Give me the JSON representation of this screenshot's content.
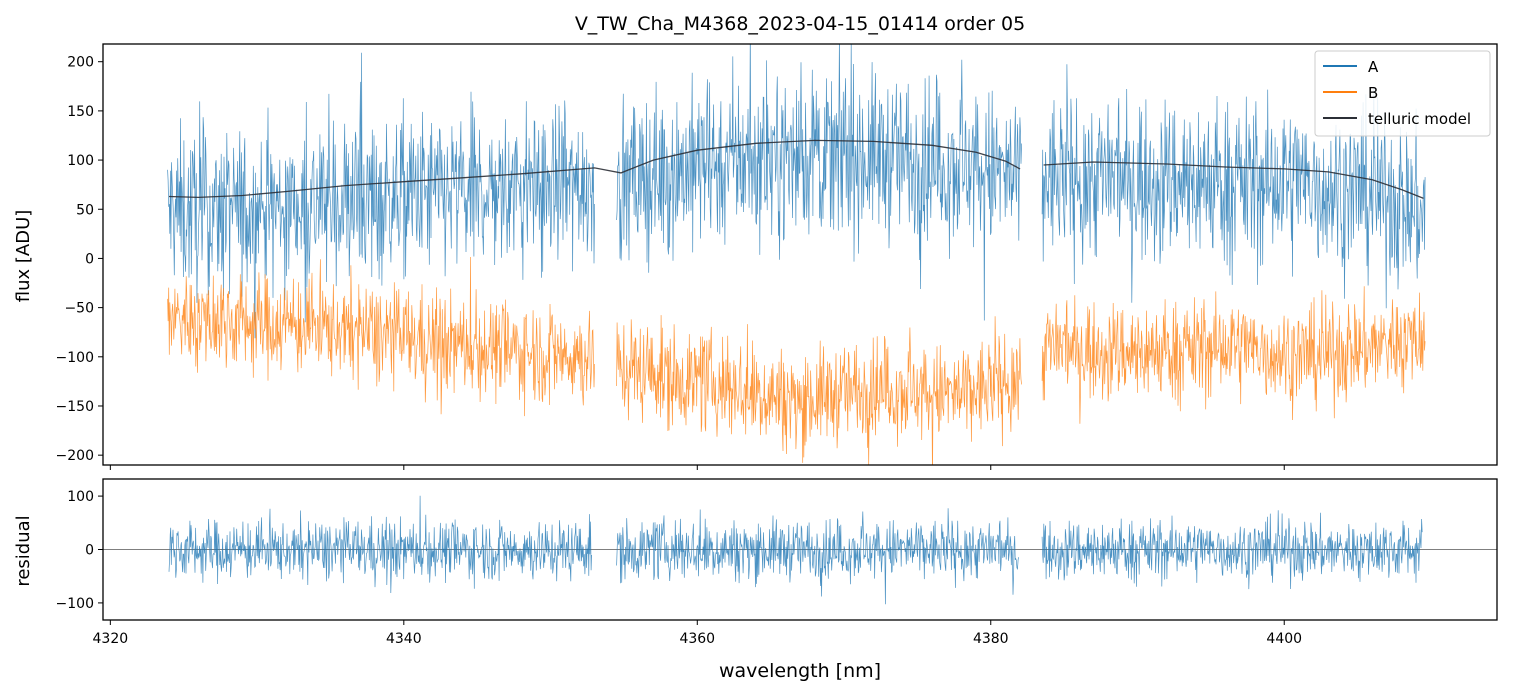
{
  "chart_data": [
    {
      "panel": "main",
      "type": "line",
      "title": "V_TW_Cha_M4368_2023-04-15_01414  order 05",
      "xlabel": "",
      "ylabel": "flux [ADU]",
      "xlim": [
        4319.5,
        4414.5
      ],
      "ylim": [
        -210,
        218
      ],
      "xticks": [
        4320,
        4340,
        4360,
        4380,
        4400
      ],
      "yticks": [
        -200,
        -150,
        -100,
        -50,
        0,
        50,
        100,
        150,
        200
      ],
      "ytick_labels": [
        "−200",
        "−150",
        "−100",
        "−50",
        "0",
        "50",
        "100",
        "150",
        "200"
      ],
      "show_xtick_labels": false,
      "legend": {
        "position": "top-right",
        "entries": [
          "A",
          "B",
          "telluric model"
        ]
      },
      "segments": [
        {
          "range": [
            4323.9,
            4353.0
          ]
        },
        {
          "range": [
            4354.5,
            4382.1
          ]
        },
        {
          "range": [
            4383.5,
            4409.6
          ]
        }
      ],
      "series": [
        {
          "name": "A",
          "color": "#1f77b4",
          "style": "noisy spectrum",
          "baseline_offset": -15,
          "noise_amplitude": 75
        },
        {
          "name": "B",
          "color": "#ff7f0e",
          "style": "noisy spectrum",
          "points": [
            [
              4324,
              -60
            ],
            [
              4335,
              -70
            ],
            [
              4345,
              -90
            ],
            [
              4353,
              -100
            ],
            [
              4355,
              -110
            ],
            [
              4362,
              -130
            ],
            [
              4367,
              -145
            ],
            [
              4372,
              -130
            ],
            [
              4378,
              -140
            ],
            [
              4382,
              -120
            ],
            [
              4384,
              -90
            ],
            [
              4390,
              -95
            ],
            [
              4396,
              -90
            ],
            [
              4402,
              -100
            ],
            [
              4409,
              -80
            ]
          ],
          "noise_amplitude": 45
        },
        {
          "name": "telluric model",
          "color": "#2b2f36",
          "style": "smooth line",
          "points": [
            [
              4324.0,
              63
            ],
            [
              4326.0,
              62
            ],
            [
              4329.0,
              64
            ],
            [
              4332.0,
              68
            ],
            [
              4336.0,
              74
            ],
            [
              4340.0,
              78
            ],
            [
              4344.0,
              82
            ],
            [
              4348.0,
              86
            ],
            [
              4353.0,
              92
            ],
            [
              4354.8,
              87
            ],
            [
              4357.0,
              100
            ],
            [
              4360.0,
              110
            ],
            [
              4364.0,
              117
            ],
            [
              4368.0,
              120
            ],
            [
              4372.0,
              119
            ],
            [
              4376.0,
              115
            ],
            [
              4379.0,
              108
            ],
            [
              4381.0,
              99
            ],
            [
              4382.0,
              91
            ],
            null,
            [
              4383.6,
              95
            ],
            [
              4387.0,
              98
            ],
            [
              4392.0,
              96
            ],
            [
              4396.0,
              93
            ],
            [
              4400.0,
              91
            ],
            [
              4403.0,
              88
            ],
            [
              4406.0,
              80
            ],
            [
              4408.0,
              70
            ],
            [
              4409.5,
              61
            ]
          ]
        }
      ]
    },
    {
      "panel": "residual",
      "type": "line",
      "title": "",
      "xlabel": "wavelength [nm]",
      "ylabel": "residual",
      "xlim": [
        4319.5,
        4414.5
      ],
      "ylim": [
        -132,
        132
      ],
      "xticks": [
        4320,
        4340,
        4360,
        4380,
        4400
      ],
      "xtick_labels": [
        "4320",
        "4340",
        "4360",
        "4380",
        "4400"
      ],
      "yticks": [
        -100,
        0,
        100
      ],
      "ytick_labels": [
        "−100",
        "0",
        "100"
      ],
      "reference_line": 0,
      "segments": [
        {
          "range": [
            4324.0,
            4352.8
          ]
        },
        {
          "range": [
            4354.5,
            4381.9
          ]
        },
        {
          "range": [
            4383.5,
            4409.4
          ]
        }
      ],
      "series": [
        {
          "name": "residual",
          "color": "#1f77b4",
          "style": "noisy spectrum",
          "baseline_offset": 0,
          "noise_amplitude": 50
        }
      ]
    }
  ]
}
